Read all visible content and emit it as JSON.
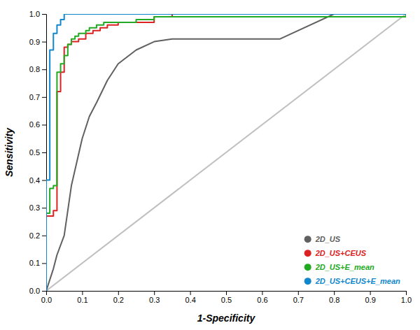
{
  "chart_data": {
    "type": "line",
    "xlabel": "1-Specificity",
    "ylabel": "Sensitivity",
    "xlim": [
      0.0,
      1.0
    ],
    "ylim": [
      0.0,
      1.0
    ],
    "xticks": [
      {
        "value": 0.0,
        "label": "0.0"
      },
      0.1,
      0.2,
      0.3,
      0.4,
      0.5,
      0.6,
      0.7,
      0.8,
      0.9,
      {
        "value": 1.0,
        "label": "1.0"
      }
    ],
    "yticks": [
      {
        "value": 0.0,
        "label": "0.0"
      },
      0.1,
      0.2,
      0.3,
      0.4,
      0.5,
      0.6,
      0.7,
      0.8,
      0.9,
      {
        "value": 1.0,
        "label": "1.0"
      }
    ],
    "grid": false,
    "legend": "lower right",
    "diagonal": {
      "x": [
        0,
        1
      ],
      "values": [
        0,
        1
      ],
      "color": "#c0c0c0"
    },
    "series": [
      {
        "name": "2D_US",
        "color": "#606060",
        "line_style": "solid",
        "x": [
          0.0,
          0.01,
          0.02,
          0.03,
          0.05,
          0.07,
          0.1,
          0.12,
          0.14,
          0.17,
          0.2,
          0.25,
          0.3,
          0.35,
          0.38,
          0.4,
          0.45,
          0.55,
          0.65,
          0.8,
          1.0
        ],
        "values": [
          0.0,
          0.04,
          0.08,
          0.13,
          0.2,
          0.38,
          0.55,
          0.63,
          0.68,
          0.76,
          0.82,
          0.87,
          0.9,
          0.91,
          0.91,
          0.91,
          0.91,
          0.91,
          0.91,
          1.0,
          1.0
        ]
      },
      {
        "name": "2D_US+CEUS",
        "color": "#dd2222",
        "line_style": "step",
        "x": [
          0.0,
          0.0,
          0.01,
          0.02,
          0.02,
          0.03,
          0.03,
          0.04,
          0.04,
          0.05,
          0.05,
          0.06,
          0.06,
          0.07,
          0.07,
          0.08,
          0.09,
          0.1,
          0.11,
          0.12,
          0.13,
          0.14,
          0.15,
          0.16,
          0.17,
          0.18,
          0.2,
          0.25,
          0.3,
          0.35,
          1.0
        ],
        "values": [
          0.0,
          0.27,
          0.27,
          0.27,
          0.29,
          0.29,
          0.72,
          0.72,
          0.79,
          0.79,
          0.88,
          0.88,
          0.89,
          0.89,
          0.9,
          0.9,
          0.91,
          0.91,
          0.93,
          0.93,
          0.94,
          0.94,
          0.95,
          0.95,
          0.96,
          0.96,
          0.97,
          0.97,
          0.99,
          1.0,
          1.0
        ]
      },
      {
        "name": "2D_US+E_mean",
        "color": "#22aa22",
        "line_style": "step",
        "x": [
          0.0,
          0.0,
          0.01,
          0.01,
          0.02,
          0.02,
          0.03,
          0.03,
          0.04,
          0.04,
          0.05,
          0.05,
          0.06,
          0.06,
          0.07,
          0.07,
          0.08,
          0.08,
          0.09,
          0.09,
          0.1,
          0.1,
          0.11,
          0.11,
          0.12,
          0.12,
          0.13,
          0.13,
          0.14,
          0.14,
          0.16,
          0.16,
          0.18,
          0.18,
          0.2,
          0.25,
          0.3,
          1.0
        ],
        "values": [
          0.0,
          0.28,
          0.28,
          0.37,
          0.37,
          0.38,
          0.38,
          0.79,
          0.79,
          0.82,
          0.82,
          0.85,
          0.85,
          0.89,
          0.89,
          0.91,
          0.91,
          0.92,
          0.92,
          0.93,
          0.93,
          0.93,
          0.93,
          0.94,
          0.94,
          0.95,
          0.95,
          0.95,
          0.95,
          0.96,
          0.96,
          0.97,
          0.97,
          0.97,
          0.97,
          0.98,
          0.99,
          1.0
        ]
      },
      {
        "name": "2D_US+CEUS+E_mean",
        "color": "#1188cc",
        "line_style": "step",
        "x": [
          0.0,
          0.0,
          0.0,
          0.01,
          0.01,
          0.01,
          0.02,
          0.02,
          0.02,
          0.03,
          0.03,
          0.03,
          0.04,
          0.04,
          0.04,
          0.05,
          0.05,
          0.05,
          0.06,
          0.06,
          0.07,
          0.07,
          0.08,
          0.08,
          0.09,
          0.09,
          0.1,
          0.12,
          0.15,
          1.0
        ],
        "values": [
          0.0,
          0.05,
          0.4,
          0.4,
          0.65,
          0.87,
          0.87,
          0.88,
          0.93,
          0.93,
          0.94,
          0.96,
          0.96,
          0.97,
          0.98,
          0.98,
          0.99,
          1.0,
          1.0,
          1.0,
          1.0,
          1.0,
          1.0,
          1.0,
          1.0,
          1.0,
          1.0,
          1.0,
          1.0,
          1.0
        ]
      }
    ]
  }
}
